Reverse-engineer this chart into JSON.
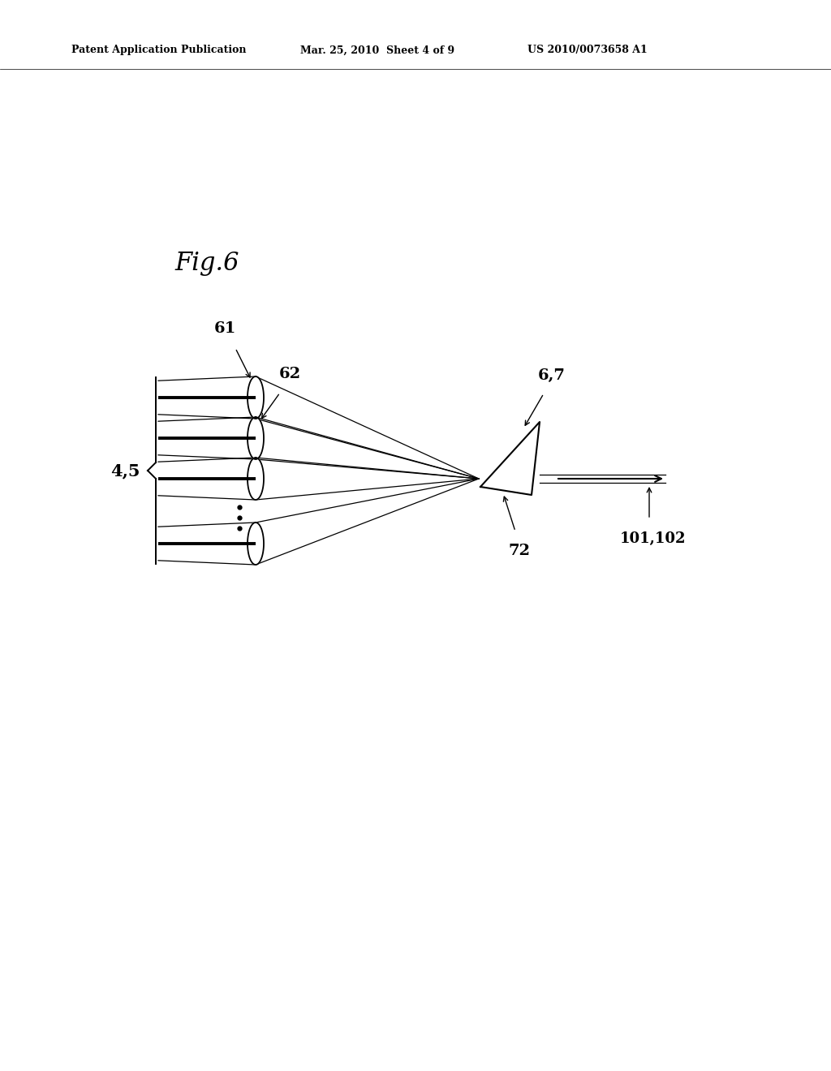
{
  "background_color": "#ffffff",
  "header_left": "Patent Application Publication",
  "header_center": "Mar. 25, 2010  Sheet 4 of 9",
  "header_right": "US 2010/0073658 A1",
  "fig_label": "Fig.6",
  "label_45": "4,5",
  "label_61": "61",
  "label_62": "62",
  "label_67": "6,7",
  "label_72": "72",
  "label_101102": "101,102",
  "line_color": "#000000"
}
